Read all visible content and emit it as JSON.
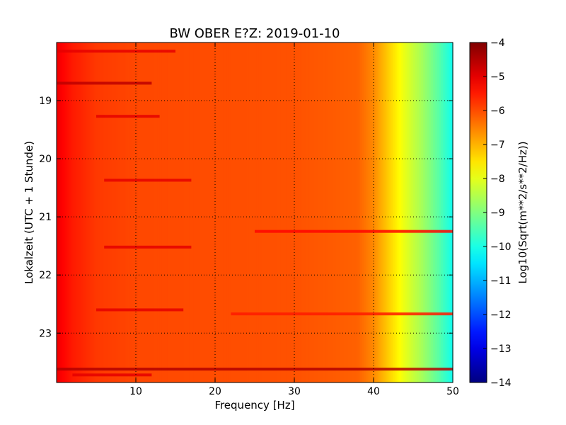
{
  "chart_data": {
    "type": "heatmap",
    "title": "BW OBER E?Z: 2019-01-10",
    "xlabel": "Frequency [Hz]",
    "ylabel": "Lokalzeit (UTC + 1 Stunde)",
    "xlim": [
      0,
      50
    ],
    "ylim": [
      18.0,
      23.85
    ],
    "y_inverted": true,
    "x_ticks": [
      10,
      20,
      30,
      40,
      50
    ],
    "y_ticks": [
      19,
      20,
      21,
      22,
      23
    ],
    "grid": true,
    "colormap": "jet",
    "colorbar": {
      "label": "Log10(Sqrt(m**2/s**2/Hz))",
      "range": [
        -14,
        -4
      ],
      "ticks": [
        -4,
        -5,
        -6,
        -7,
        -8,
        -9,
        -10,
        -11,
        -12,
        -13,
        -14
      ]
    },
    "baseline_spectrum": {
      "frequency_hz": [
        0,
        2,
        5,
        10,
        20,
        30,
        38,
        40,
        42,
        44,
        46,
        48,
        50
      ],
      "log10_amplitude": [
        -5.1,
        -5.5,
        -5.8,
        -5.95,
        -6.0,
        -6.05,
        -6.2,
        -6.6,
        -7.3,
        -8.0,
        -8.6,
        -9.3,
        -10.1
      ]
    },
    "horizontal_features": [
      {
        "time": 18.15,
        "f_start": 0,
        "f_end": 15,
        "log10_amplitude": -5.0
      },
      {
        "time": 18.7,
        "f_start": 0,
        "f_end": 12,
        "log10_amplitude": -4.6
      },
      {
        "time": 19.27,
        "f_start": 5,
        "f_end": 13,
        "log10_amplitude": -5.0
      },
      {
        "time": 20.37,
        "f_start": 6,
        "f_end": 17,
        "log10_amplitude": -5.0
      },
      {
        "time": 21.25,
        "f_start": 25,
        "f_end": 50,
        "log10_amplitude": -5.3
      },
      {
        "time": 21.52,
        "f_start": 6,
        "f_end": 17,
        "log10_amplitude": -5.0
      },
      {
        "time": 22.6,
        "f_start": 5,
        "f_end": 16,
        "log10_amplitude": -5.0
      },
      {
        "time": 22.67,
        "f_start": 22,
        "f_end": 50,
        "log10_amplitude": -5.5
      },
      {
        "time": 23.62,
        "f_start": 0,
        "f_end": 50,
        "log10_amplitude": -4.5
      },
      {
        "time": 23.72,
        "f_start": 2,
        "f_end": 12,
        "log10_amplitude": -5.0
      }
    ]
  }
}
